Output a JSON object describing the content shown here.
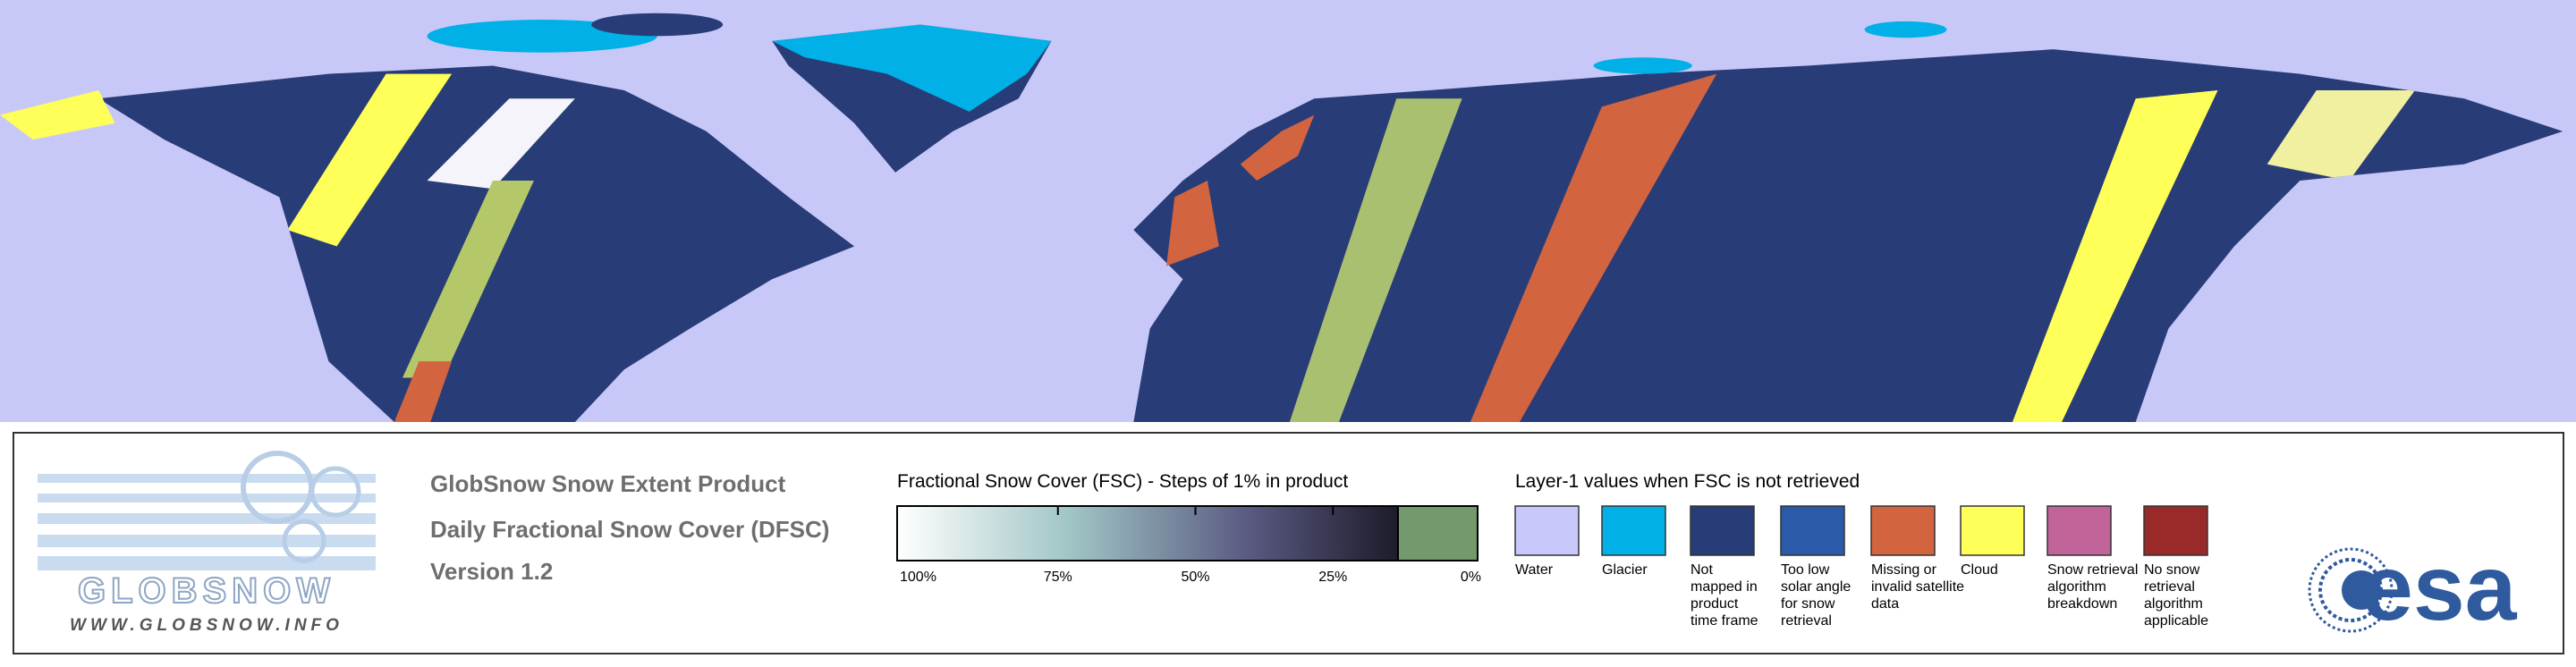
{
  "logo": {
    "name": "GLOBSNOW",
    "url": "WWW.GLOBSNOW.INFO"
  },
  "product": {
    "title": "GlobSnow Snow Extent Product",
    "subtitle": "Daily Fractional Snow Cover (DFSC)",
    "version": "Version 1.2"
  },
  "fsc_legend": {
    "title": "Fractional Snow Cover (FSC) - Steps of 1% in product",
    "ticks": [
      "100%",
      "75%",
      "50%",
      "25%",
      "0%"
    ]
  },
  "layer1_legend": {
    "title": "Layer-1 values when FSC is not retrieved",
    "items": [
      {
        "lines": [
          "Water"
        ],
        "color": "#c8c8fa"
      },
      {
        "lines": [
          "Glacier"
        ],
        "color": "#00b0e6"
      },
      {
        "lines": [
          "Not",
          "mapped in",
          "product",
          "time frame"
        ],
        "color": "#283c78"
      },
      {
        "lines": [
          "Too low",
          "solar angle",
          "for snow",
          "retrieval"
        ],
        "color": "#2a5aa8"
      },
      {
        "lines": [
          "Missing or",
          "invalid satellite",
          "data"
        ],
        "color": "#d26440"
      },
      {
        "lines": [
          "Cloud"
        ],
        "color": "#ffff5a"
      },
      {
        "lines": [
          "Snow retrieval",
          "algorithm",
          "breakdown"
        ],
        "color": "#c0649a"
      },
      {
        "lines": [
          "No snow",
          "retrieval",
          "algorithm",
          "applicable"
        ],
        "color": "#9a2a2a"
      }
    ]
  },
  "agency": "esa"
}
